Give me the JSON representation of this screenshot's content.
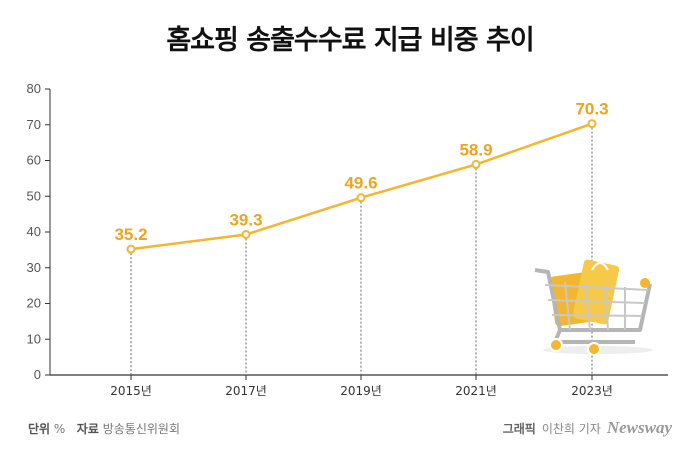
{
  "title": "홈쇼핑 송출수수료 지급 비중 추이",
  "footer": {
    "unit_label": "단위",
    "unit": "%",
    "source_label": "자료",
    "source": "방송통신위원회",
    "credit_label": "그래픽",
    "credit_name": "이찬희 기자",
    "brand": "Newsway"
  },
  "colors": {
    "line": "#f5b52e",
    "label": "#f0a41e",
    "axis": "#333333",
    "grid": "#666666"
  },
  "cart_icon": "shopping-cart-icon",
  "chart_data": {
    "type": "line",
    "title": "홈쇼핑 송출수수료 지급 비중 추이",
    "categories": [
      "2015년",
      "2017년",
      "2019년",
      "2021년",
      "2023년"
    ],
    "values": [
      35.2,
      39.3,
      49.6,
      58.9,
      70.3
    ],
    "value_labels": [
      "35.2",
      "39.3",
      "49.6",
      "58.9",
      "70.3"
    ],
    "y_ticks": [
      "0",
      "10",
      "20",
      "30",
      "40",
      "50",
      "60",
      "70",
      "80"
    ],
    "ylim": [
      0,
      80
    ],
    "xlabel": "",
    "ylabel": "",
    "grid": false,
    "drop_lines": true
  }
}
